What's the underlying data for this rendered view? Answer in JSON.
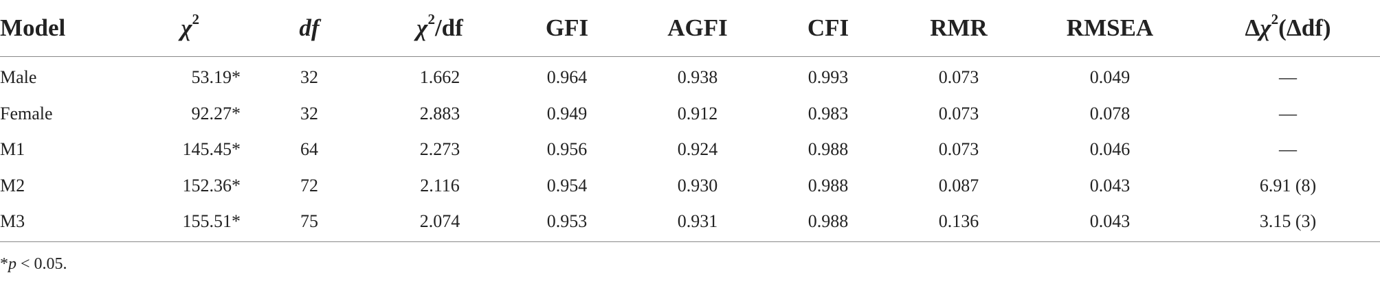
{
  "table": {
    "headers": {
      "model": "Model",
      "chi_symbol": "χ",
      "chi_sup": "2",
      "df": "df",
      "chi_df_symbol": "χ",
      "chi_df_sup": "2",
      "chi_df_suffix": "/df",
      "gfi": "GFI",
      "agfi": "AGFI",
      "cfi": "CFI",
      "rmr": "RMR",
      "rmsea": "RMSEA",
      "delta_prefix": "Δ",
      "delta_chi": "χ",
      "delta_sup": "2",
      "delta_suffix": "(Δdf)"
    },
    "rows": [
      {
        "model": "Male",
        "chi2": "53.19*",
        "df": "32",
        "chi2_df": "1.662",
        "gfi": "0.964",
        "agfi": "0.938",
        "cfi": "0.993",
        "rmr": "0.073",
        "rmsea": "0.049",
        "delta": "—"
      },
      {
        "model": "Female",
        "chi2": "92.27*",
        "df": "32",
        "chi2_df": "2.883",
        "gfi": "0.949",
        "agfi": "0.912",
        "cfi": "0.983",
        "rmr": "0.073",
        "rmsea": "0.078",
        "delta": "—"
      },
      {
        "model": "M1",
        "chi2": "145.45*",
        "df": "64",
        "chi2_df": "2.273",
        "gfi": "0.956",
        "agfi": "0.924",
        "cfi": "0.988",
        "rmr": "0.073",
        "rmsea": "0.046",
        "delta": "—"
      },
      {
        "model": "M2",
        "chi2": "152.36*",
        "df": "72",
        "chi2_df": "2.116",
        "gfi": "0.954",
        "agfi": "0.930",
        "cfi": "0.988",
        "rmr": "0.087",
        "rmsea": "0.043",
        "delta": "6.91 (8)"
      },
      {
        "model": "M3",
        "chi2": "155.51*",
        "df": "75",
        "chi2_df": "2.074",
        "gfi": "0.953",
        "agfi": "0.931",
        "cfi": "0.988",
        "rmr": "0.136",
        "rmsea": "0.043",
        "delta": "3.15 (3)"
      }
    ]
  },
  "footnote": {
    "star": "*",
    "p": "p",
    "rest": " < 0.05."
  }
}
